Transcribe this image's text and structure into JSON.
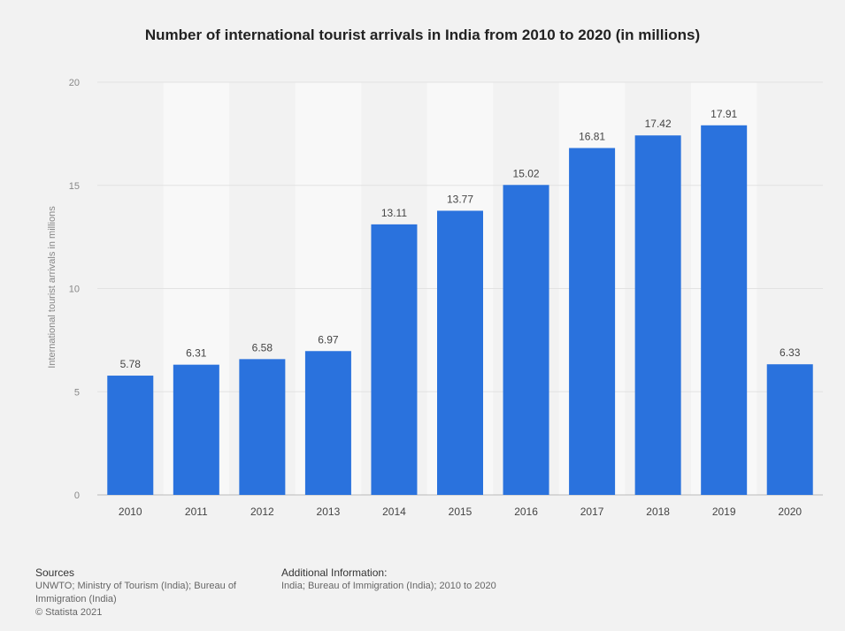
{
  "chart_data": {
    "type": "bar",
    "title": "Number of international tourist arrivals in India from 2010 to 2020 (in millions)",
    "xlabel": "",
    "ylabel": "International tourist arrivals in millions",
    "categories": [
      "2010",
      "2011",
      "2012",
      "2013",
      "2014",
      "2015",
      "2016",
      "2017",
      "2018",
      "2019",
      "2020"
    ],
    "values": [
      5.78,
      6.31,
      6.58,
      6.97,
      13.11,
      13.77,
      15.02,
      16.81,
      17.42,
      17.91,
      6.33
    ],
    "data_labels": [
      "5.78",
      "6.31",
      "6.58",
      "6.97",
      "13.11",
      "13.77",
      "15.02",
      "16.81",
      "17.42",
      "17.91",
      "6.33"
    ],
    "ylim": [
      0,
      20
    ],
    "yticks": [
      0,
      5,
      10,
      15,
      20
    ],
    "grid": true,
    "bar_color": "#2a72dd"
  },
  "footer": {
    "sources_heading": "Sources",
    "sources_line1": "UNWTO; Ministry of Tourism (India); Bureau of",
    "sources_line2": "Immigration (India)",
    "copyright": "© Statista 2021",
    "additional_heading": "Additional Information:",
    "additional_text": "India; Bureau of Immigration (India); 2010 to 2020"
  }
}
